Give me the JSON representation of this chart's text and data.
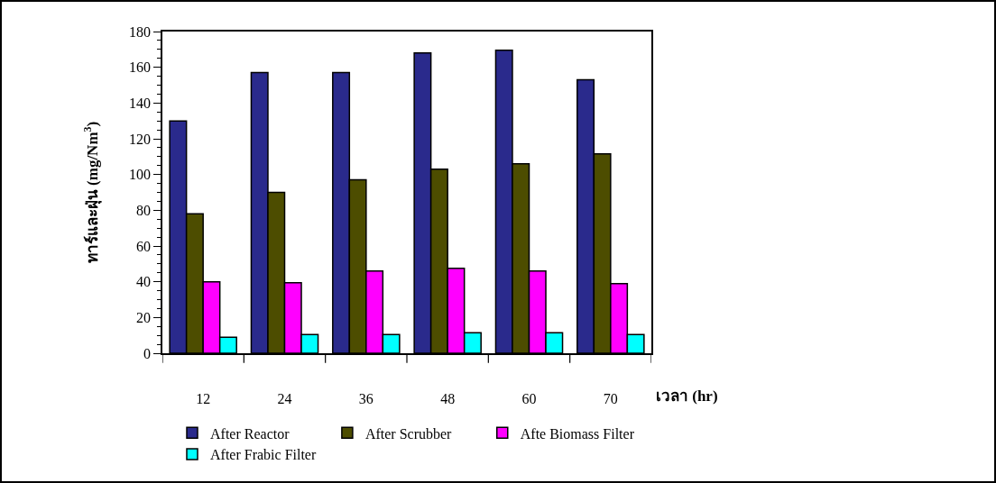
{
  "chart_data": {
    "type": "bar",
    "categories": [
      "12",
      "24",
      "36",
      "48",
      "60",
      "70"
    ],
    "xlabel": "เวลา (hr)",
    "ylabel": "ทาร์และฝุ่น (mg/Nm$^{3}$)",
    "series": [
      {
        "name": "After Reactor",
        "color": "#2a2a8c",
        "values": [
          130,
          157,
          157,
          168,
          169.5,
          153
        ]
      },
      {
        "name": "After Scrubber",
        "color": "#4d4d00",
        "values": [
          78,
          90,
          97,
          103,
          106,
          111.5
        ]
      },
      {
        "name": "Afte Biomass Filter",
        "color": "#ff00ff",
        "values": [
          40,
          39.5,
          46,
          47.5,
          46,
          39
        ]
      },
      {
        "name": "After Frabic Filter",
        "color": "#00ffff",
        "values": [
          9,
          10.5,
          10.5,
          11.5,
          11.5,
          10.5
        ]
      }
    ],
    "ylim": [
      0,
      180
    ],
    "yticks": [
      0,
      20,
      40,
      60,
      80,
      100,
      120,
      140,
      160,
      180
    ],
    "grid": false,
    "legend": "bottom"
  }
}
